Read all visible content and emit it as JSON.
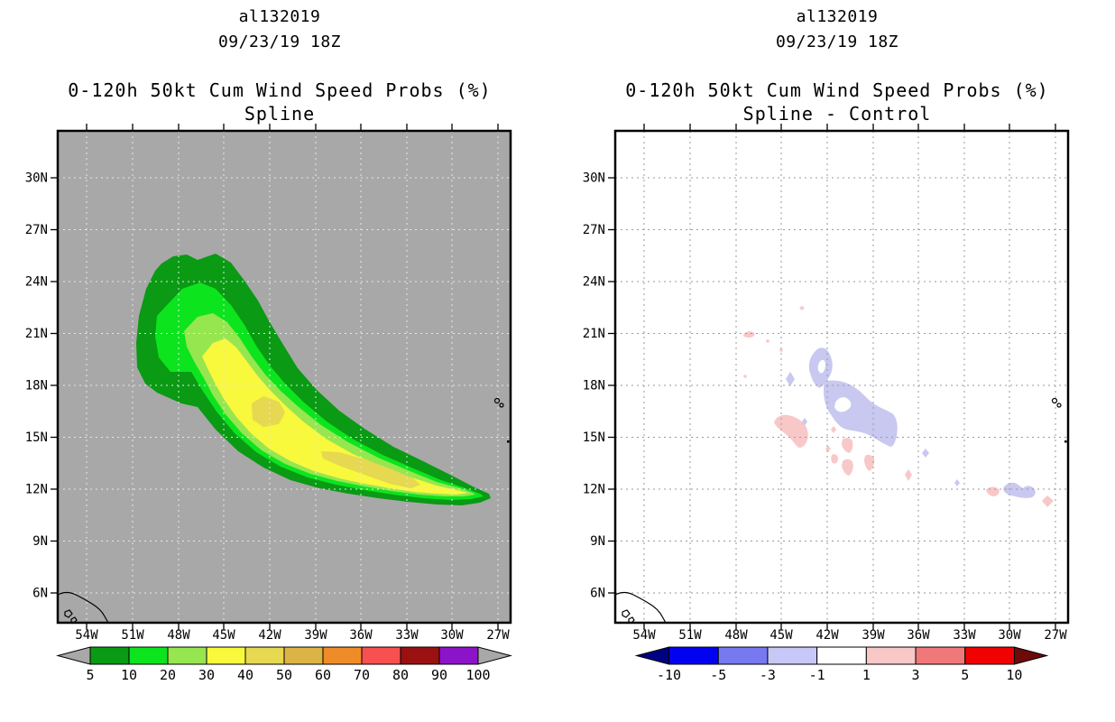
{
  "panels": [
    {
      "name": "spline",
      "title": {
        "storm_id": "al132019",
        "datetime": "09/23/19 18Z",
        "product": "0-120h 50kt Cum Wind Speed Probs (%)",
        "method": "Spline"
      },
      "map": {
        "background": "#a8a8a8",
        "grid_color": "#e8e8e8",
        "frame_color": "#000000",
        "lat_ticks": [
          "30N",
          "27N",
          "24N",
          "21N",
          "18N",
          "15N",
          "12N",
          "9N",
          "6N"
        ],
        "lon_ticks": [
          "54W",
          "51W",
          "48W",
          "45W",
          "42W",
          "39W",
          "36W",
          "33W",
          "30W",
          "27W"
        ]
      },
      "levels": {
        "l5": "#0a9a14",
        "l10": "#0ce41e",
        "l20": "#96e650",
        "l30": "#f8f83c",
        "l40": "#e6d850"
      },
      "colorbar": {
        "labels": [
          "5",
          "10",
          "20",
          "30",
          "40",
          "50",
          "60",
          "70",
          "80",
          "90",
          "100"
        ],
        "colors": [
          "#0a9a14",
          "#0ce41e",
          "#96e650",
          "#f8f83c",
          "#e6d850",
          "#dcb446",
          "#f08c28",
          "#f85050",
          "#9b1010",
          "#8c14c8"
        ],
        "arrow_left": "#a8a8a8",
        "arrow_right": "#a8a8a8"
      }
    },
    {
      "name": "spline-minus-control",
      "title": {
        "storm_id": "al132019",
        "datetime": "09/23/19 18Z",
        "product": "0-120h 50kt Cum Wind Speed Probs (%)",
        "method": "Spline - Control"
      },
      "map": {
        "background": "#ffffff",
        "grid_color": "#9a9a9a",
        "frame_color": "#000000",
        "lat_ticks": [
          "30N",
          "27N",
          "24N",
          "21N",
          "18N",
          "15N",
          "12N",
          "9N",
          "6N"
        ],
        "lon_ticks": [
          "54W",
          "51W",
          "48W",
          "45W",
          "42W",
          "39W",
          "36W",
          "33W",
          "30W",
          "27W"
        ]
      },
      "anomaly": {
        "negative": "#c8c8f0",
        "positive": "#f8c8c8"
      },
      "colorbar": {
        "labels": [
          "-10",
          "-5",
          "-3",
          "-1",
          "1",
          "3",
          "5",
          "10"
        ],
        "colors": [
          "#0202f0",
          "#7878f0",
          "#c8c8f8",
          "#ffffff",
          "#f8c8c8",
          "#f07878",
          "#f00202"
        ],
        "arrow_left": "#000082",
        "arrow_right": "#6e0a0a"
      }
    }
  ],
  "chart_data": [
    {
      "type": "heatmap",
      "subtype": "filled-contour-map",
      "title": "al132019 09/23/19 18Z — 0-120h 50kt Cum Wind Speed Probs (%) — Spline",
      "x_ticks": [
        "54W",
        "51W",
        "48W",
        "45W",
        "42W",
        "39W",
        "36W",
        "33W",
        "30W",
        "27W"
      ],
      "y_ticks": [
        "30N",
        "27N",
        "24N",
        "21N",
        "18N",
        "15N",
        "12N",
        "9N",
        "6N"
      ],
      "lon_range_deg_west": [
        56,
        26
      ],
      "lat_range_deg_north": [
        4.5,
        32.5
      ],
      "grid": true,
      "legend_position": "bottom",
      "legend_levels_pct": [
        5,
        10,
        20,
        30,
        40,
        50,
        60,
        70,
        80,
        90,
        100
      ],
      "regions": [
        {
          "level_pct": 5,
          "color": "#0a9a14",
          "extent": "banana-shaped swath from ~51W,26N curving southeast to a tip near 27.5W,11.5N"
        },
        {
          "level_pct": 10,
          "color": "#0ce41e",
          "extent": "nested inside 5% band, ~50W,25N down to ~27.8W,11.7N"
        },
        {
          "level_pct": 20,
          "color": "#96e650",
          "extent": "nested band ~49W,24N down to ~28W,12N"
        },
        {
          "level_pct": 30,
          "color": "#f8f83c",
          "extent": "elongated yellow core from ~48.5W,22.5N to ~28.3W,12N"
        },
        {
          "level_pct": 40,
          "color": "#e6d850",
          "extent": "two small patches near 44.5W,17N and along 38W-32W,13.5N"
        }
      ],
      "max_band_pct": "40-50"
    },
    {
      "type": "heatmap",
      "subtype": "filled-contour-difference-map",
      "title": "al132019 09/23/19 18Z — 0-120h 50kt Cum Wind Speed Probs (%) — Spline - Control",
      "x_ticks": [
        "54W",
        "51W",
        "48W",
        "45W",
        "42W",
        "39W",
        "36W",
        "33W",
        "30W",
        "27W"
      ],
      "y_ticks": [
        "30N",
        "27N",
        "24N",
        "21N",
        "18N",
        "15N",
        "12N",
        "9N",
        "6N"
      ],
      "lon_range_deg_west": [
        56,
        26
      ],
      "lat_range_deg_north": [
        4.5,
        32.5
      ],
      "grid": true,
      "legend_position": "bottom",
      "legend_levels_pct": [
        -10,
        -5,
        -3,
        -1,
        1,
        3,
        5,
        10
      ],
      "regions": [
        {
          "level_pct": "-3 to -1",
          "color": "#c8c8f0",
          "extent": "lavender patches: 42.5W,18-19.5N ring with hole; 41.5-38.5W,14.5-17.5N ring with hole; 43.5W,17N; 33-32.5W,12N; small specks 40W,13.5N and 36W,13N"
        },
        {
          "level_pct": "1 to 3",
          "color": "#f8c8c8",
          "extent": "pink patches: 45W,15.5-16.5N; 42-40.5W,13-14.5N cluster; 37W,13N; 34.5W,12.5N; 30.5W,12N; 27.5W,11.5N; specks near 48W,21N"
        }
      ]
    }
  ]
}
